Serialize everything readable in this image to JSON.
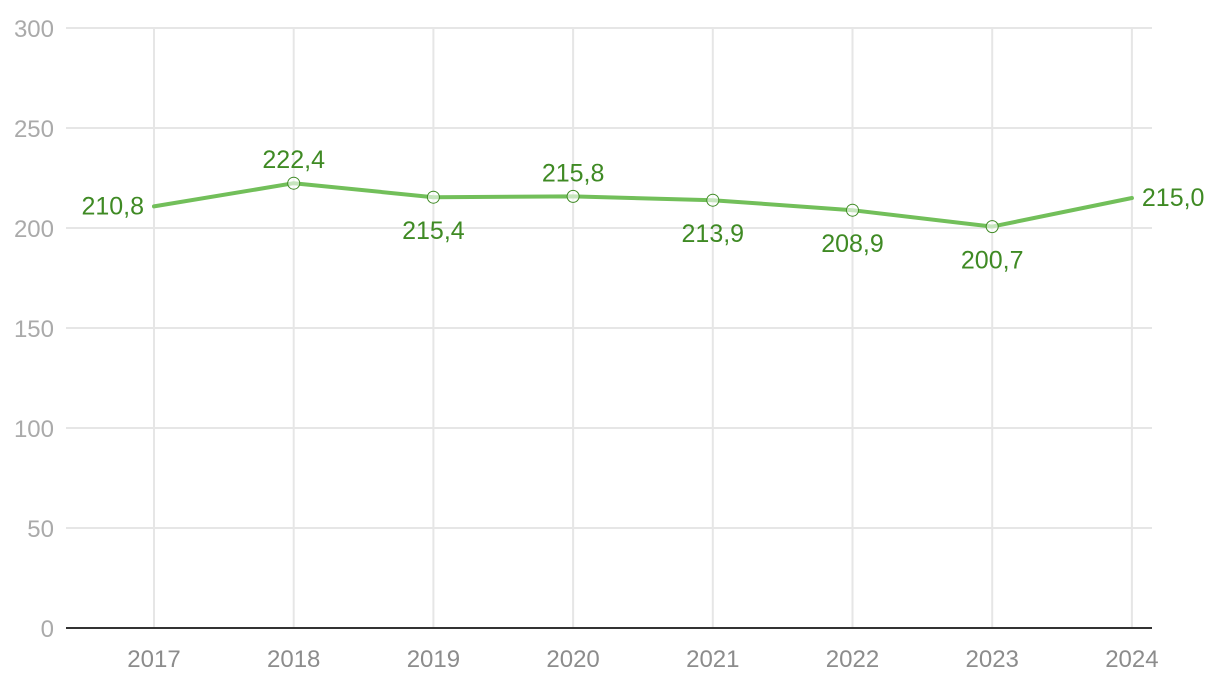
{
  "chart_data": {
    "type": "line",
    "title": "",
    "xlabel": "",
    "ylabel": "",
    "categories": [
      "2017",
      "2018",
      "2019",
      "2020",
      "2021",
      "2022",
      "2023",
      "2024"
    ],
    "series": [
      {
        "values": [
          210.8,
          222.4,
          215.4,
          215.8,
          213.9,
          208.9,
          200.7,
          215.0
        ],
        "data_labels": [
          "210,8",
          "222,4",
          "215,4",
          "215,8",
          "213,9",
          "208,9",
          "200,7",
          "215,0"
        ],
        "color": "#72bf5a",
        "label_color": "#3f8a24"
      }
    ],
    "ylim": [
      0,
      300
    ],
    "yticks": [
      0,
      50,
      100,
      150,
      200,
      250,
      300
    ],
    "grid": true,
    "legend": "none"
  }
}
